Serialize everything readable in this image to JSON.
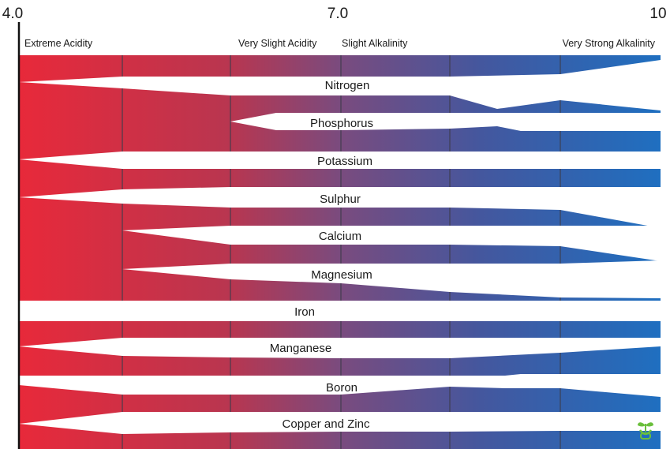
{
  "scale": {
    "ticks": [
      {
        "value": 4.0,
        "label": "4.0"
      },
      {
        "value": 7.0,
        "label": "7.0"
      },
      {
        "value": 10.0,
        "label": "10"
      }
    ],
    "zones": [
      "Extreme Acidity",
      "Very Slight Acidity",
      "Slight Alkalinity",
      "Very Strong Alkalinity"
    ],
    "gradient": {
      "acid_color": "#e8293a",
      "mid_color": "#6e4d85",
      "alkaline_color": "#1f6fc0"
    }
  },
  "nutrients": [
    {
      "name": "Nitrogen"
    },
    {
      "name": "Phosphorus"
    },
    {
      "name": "Potassium"
    },
    {
      "name": "Sulphur"
    },
    {
      "name": "Calcium"
    },
    {
      "name": "Magnesium"
    },
    {
      "name": "Iron"
    },
    {
      "name": "Manganese"
    },
    {
      "name": "Boron"
    },
    {
      "name": "Copper and Zinc"
    }
  ],
  "logo": {
    "icon": "sprout-icon",
    "color": "#6abf3c"
  }
}
